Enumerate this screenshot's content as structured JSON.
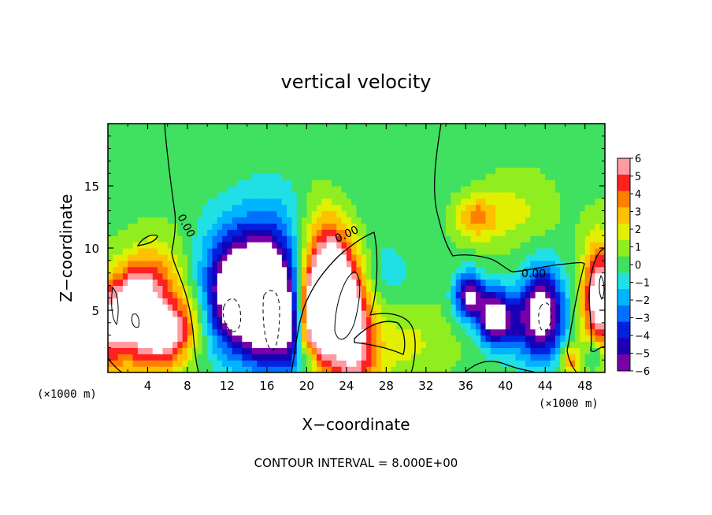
{
  "chart_data": {
    "type": "heatmap",
    "title": "vertical velocity",
    "xlabel": "X−coordinate",
    "ylabel": "Z−coordinate",
    "x_unit": "(×1000 m)",
    "x_unit_right": "(×1000 m)",
    "footer": "CONTOUR INTERVAL = 8.000E+00",
    "xlim": [
      0,
      50
    ],
    "ylim": [
      0,
      20
    ],
    "xticks": [
      4,
      8,
      12,
      16,
      20,
      24,
      28,
      32,
      36,
      40,
      44,
      48
    ],
    "yticks": [
      5,
      10,
      15
    ],
    "colorbar": {
      "min": -6,
      "max": 6,
      "ticks": [
        "6",
        "5",
        "4",
        "3",
        "2",
        "1",
        "0",
        "−1",
        "−2",
        "−3",
        "−4",
        "−5",
        "−6"
      ],
      "levels": [
        {
          "value": -6,
          "color": "#7a00a6"
        },
        {
          "value": -5,
          "color": "#1a00b4"
        },
        {
          "value": -4,
          "color": "#0020e0"
        },
        {
          "value": -3,
          "color": "#0070ff"
        },
        {
          "value": -2,
          "color": "#00b4ff"
        },
        {
          "value": -1,
          "color": "#20e0e6"
        },
        {
          "value": 0,
          "color": "#40e060"
        },
        {
          "value": 1,
          "color": "#90ee20"
        },
        {
          "value": 2,
          "color": "#e0f000"
        },
        {
          "value": 3,
          "color": "#ffc000"
        },
        {
          "value": 4,
          "color": "#ff8000"
        },
        {
          "value": 5,
          "color": "#ff2020"
        },
        {
          "value": 6,
          "color": "#ff9aa0"
        }
      ]
    },
    "contour_labels": [
      "0.00",
      "0.00",
      "0.00"
    ],
    "features": [
      {
        "x": 2.0,
        "z": 5.0,
        "w": 9,
        "sx": 2.5,
        "sz": 3.0,
        "tilt": -0.5
      },
      {
        "x": 6.0,
        "z": 3.0,
        "w": 7,
        "sx": 2.0,
        "sz": 2.0,
        "tilt": -0.3
      },
      {
        "x": 49.5,
        "z": 6.0,
        "w": 8,
        "sx": 1.2,
        "sz": 3.0,
        "tilt": 0
      },
      {
        "x": 23.5,
        "z": 5.5,
        "w": 11,
        "sx": 1.8,
        "sz": 4.5,
        "tilt": 0.2
      },
      {
        "x": 20.8,
        "z": 4.5,
        "w": 8,
        "sx": 1.3,
        "sz": 3.0,
        "tilt": 0
      },
      {
        "x": 13.0,
        "z": 6.0,
        "w": -9,
        "sx": 2.2,
        "sz": 3.0,
        "tilt": 0
      },
      {
        "x": 16.3,
        "z": 5.5,
        "w": -10,
        "sx": 1.8,
        "sz": 3.2,
        "tilt": 0
      },
      {
        "x": 18.5,
        "z": 3.0,
        "w": -4,
        "sx": 1.0,
        "sz": 2.5,
        "tilt": 0
      },
      {
        "x": 36.3,
        "z": 6.2,
        "w": -7,
        "sx": 1.0,
        "sz": 1.3,
        "tilt": 0
      },
      {
        "x": 38.8,
        "z": 4.5,
        "w": -8,
        "sx": 1.1,
        "sz": 1.5,
        "tilt": 0
      },
      {
        "x": 43.8,
        "z": 4.8,
        "w": -8,
        "sx": 1.5,
        "sz": 2.5,
        "tilt": 0
      },
      {
        "x": 41.0,
        "z": 4.0,
        "w": -3,
        "sx": 1.5,
        "sz": 2.0,
        "tilt": 0
      },
      {
        "x": 14.0,
        "z": 10.0,
        "w": -2,
        "sx": 4.0,
        "sz": 3.0,
        "tilt": 0
      },
      {
        "x": 17.0,
        "z": 12.0,
        "w": -0.8,
        "sx": 3.0,
        "sz": 3.0,
        "tilt": 0
      },
      {
        "x": 37.0,
        "z": 12.5,
        "w": 3.5,
        "sx": 1.5,
        "sz": 1.2,
        "tilt": 0
      },
      {
        "x": 41.0,
        "z": 13.0,
        "w": 1.5,
        "sx": 2.5,
        "sz": 2.0,
        "tilt": 0
      },
      {
        "x": 30.0,
        "z": 2.5,
        "w": 1.5,
        "sx": 3.0,
        "sz": 2.0,
        "tilt": 0
      },
      {
        "x": 28.0,
        "z": 8.0,
        "w": -1.2,
        "sx": 2.0,
        "sz": 2.0,
        "tilt": 0
      },
      {
        "x": 46.5,
        "z": 1.0,
        "w": 4,
        "sx": 0.6,
        "sz": 0.8,
        "tilt": 0
      },
      {
        "x": 49.0,
        "z": 1.5,
        "w": -3,
        "sx": 0.6,
        "sz": 0.8,
        "tilt": 0
      },
      {
        "x": 20.5,
        "z": 1.0,
        "w": -3,
        "sx": 0.6,
        "sz": 0.8,
        "tilt": 0
      },
      {
        "x": 26.0,
        "z": 16.0,
        "w": -0.6,
        "sx": 6.0,
        "sz": 3.0,
        "tilt": 0
      }
    ]
  }
}
